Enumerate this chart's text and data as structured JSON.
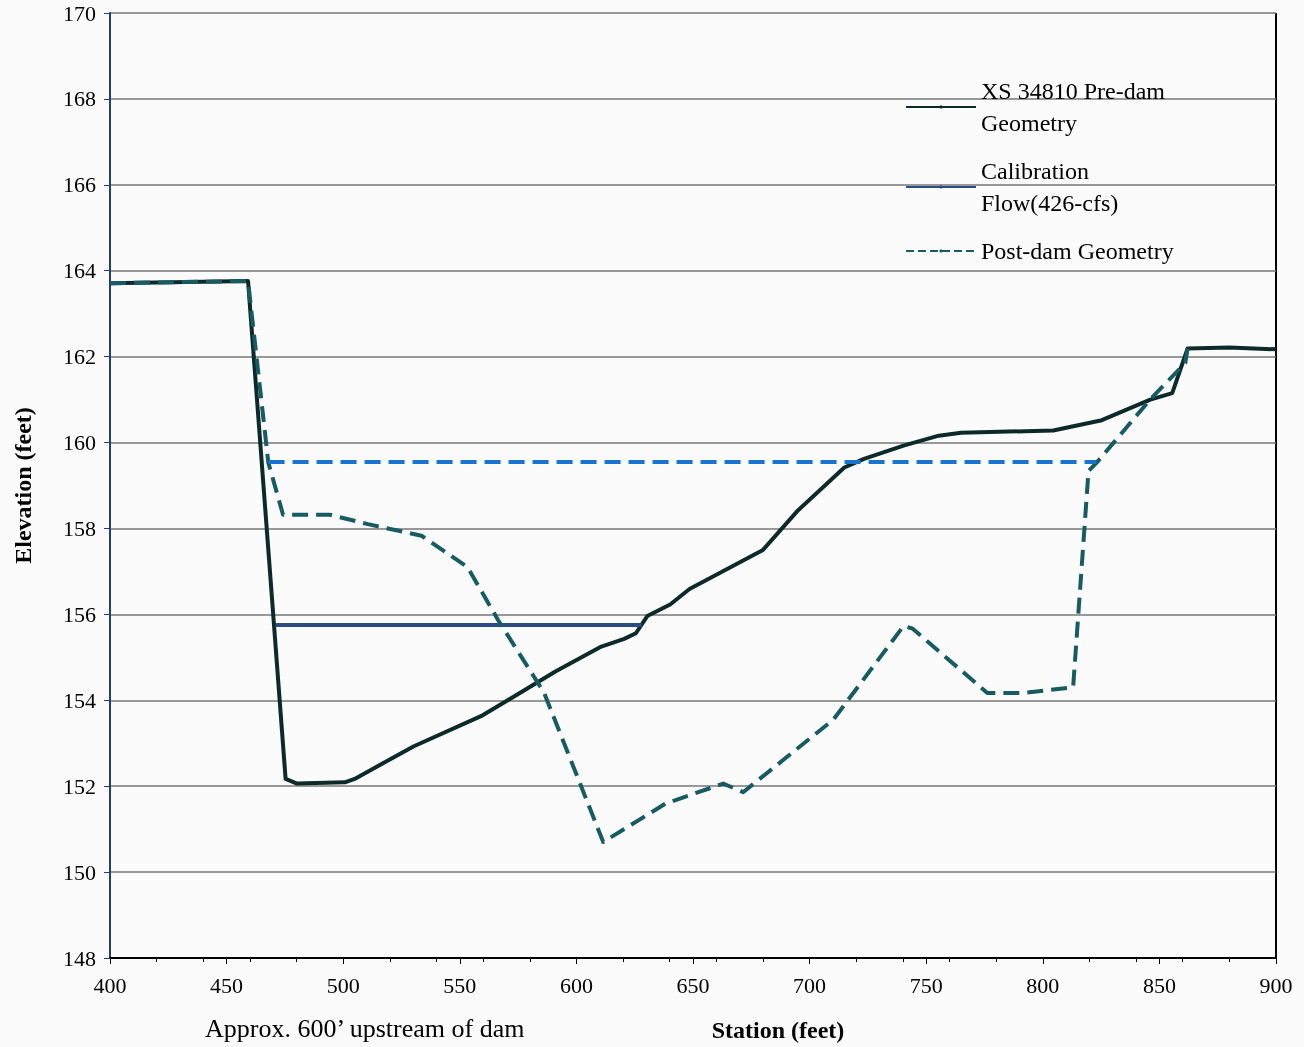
{
  "chart_data": {
    "type": "line",
    "xlabel": "Station (feet)",
    "ylabel": "Elevation (feet)",
    "xlim": [
      400,
      900
    ],
    "xticks": [
      400,
      450,
      500,
      550,
      600,
      650,
      700,
      750,
      800,
      850,
      900
    ],
    "ylim": [
      148,
      170
    ],
    "yticks": [
      148,
      150,
      152,
      154,
      156,
      158,
      160,
      162,
      164,
      166,
      168,
      170
    ],
    "grid": "y",
    "legend": "top right",
    "annotations": [
      "Approx. 600’ upstream of dam"
    ],
    "series": [
      {
        "name": "XS 34810 Pre-dam Geometry",
        "color": "#0d2a2a",
        "line_style": "solid",
        "x": [
          400,
          459.2,
          475.3,
          480.2,
          500.7,
          504.9,
          530.3,
          559.8,
          591,
          610.7,
          620.5,
          625.5,
          630.4,
          640.2,
          648.5,
          680,
          695,
          714.9,
          723.3,
          740.3,
          755.4,
          764.9,
          804.5,
          825.3,
          846.1,
          855.5,
          862.1,
          880,
          900
        ],
        "values": [
          163.71,
          163.76,
          152.17,
          152.06,
          152.09,
          152.17,
          152.93,
          153.65,
          154.67,
          155.25,
          155.43,
          155.56,
          155.96,
          156.23,
          156.59,
          157.5,
          158.42,
          159.42,
          159.62,
          159.93,
          160.16,
          160.23,
          160.28,
          160.52,
          161.0,
          161.15,
          162.19,
          162.21,
          162.17
        ]
      },
      {
        "name": "Calibration Flow(426-cfs)",
        "color": "#2a4d8a",
        "line_style": "solid",
        "x": [
          471,
          628
        ],
        "values": [
          155.75,
          155.75
        ]
      },
      {
        "name": "Post-dam Geometry",
        "color": "#175c63",
        "line_style": "dashed",
        "x": [
          400,
          459.2,
          467.9,
          474.2,
          494.2,
          510.6,
          533.6,
          553.3,
          566.4,
          586.1,
          611.5,
          638.4,
          663,
          671.5,
          710.2,
          740.3,
          744.1,
          776.2,
          791.3,
          813,
          819.6,
          823.4,
          846,
          861.1,
          862.1
        ],
        "values": [
          163.71,
          163.76,
          159.53,
          158.32,
          158.32,
          158.1,
          157.83,
          157.1,
          155.87,
          154.18,
          150.7,
          151.6,
          152.06,
          151.86,
          153.55,
          155.73,
          155.67,
          154.17,
          154.17,
          154.3,
          159.34,
          159.55,
          161.0,
          161.85,
          162.19
        ]
      },
      {
        "color": "#1874cd",
        "line_style": "dashed",
        "x": [
          468,
          823
        ],
        "values": [
          159.55,
          159.55
        ]
      }
    ]
  }
}
